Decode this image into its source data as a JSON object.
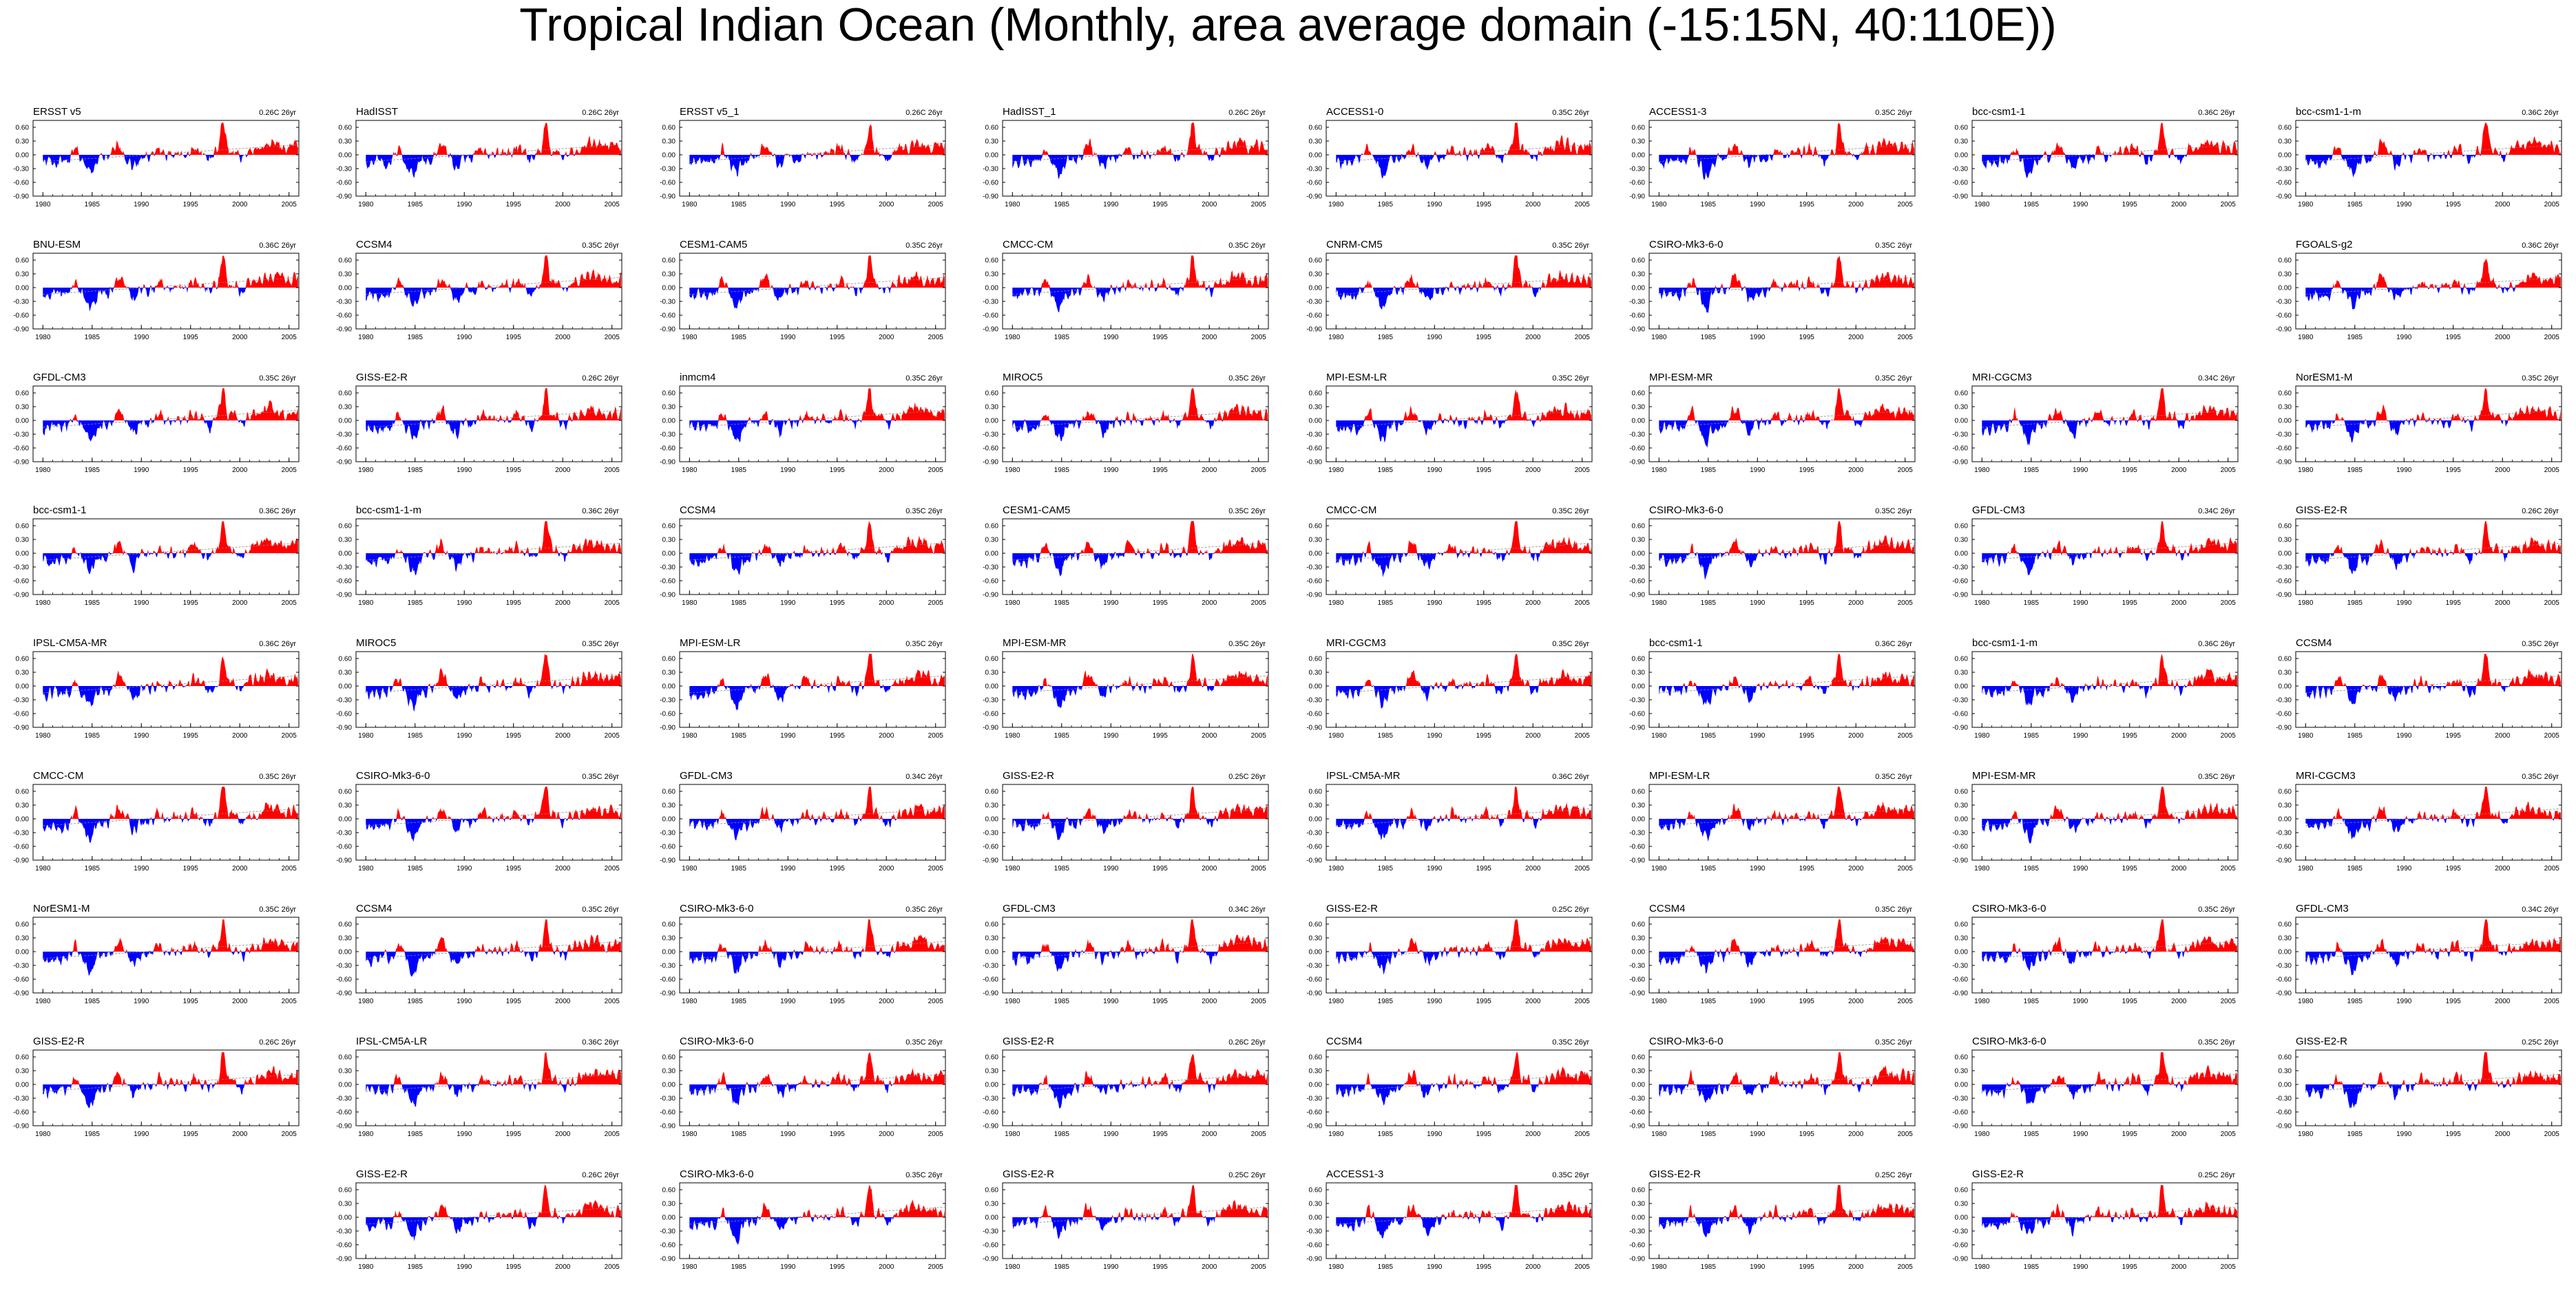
{
  "title": "Tropical Indian Ocean (Monthly, area average domain (-15:15N, 40:110E))",
  "colors": {
    "positive": "#ff0000",
    "negative": "#0000ff",
    "trend": "#888888",
    "axis": "#000000"
  },
  "chart_data": {
    "type": "area",
    "description_of_panels": "panel grid, each panel an anomaly time series with red fill above zero and blue fill below",
    "x_ticks": [
      "1980",
      "1985",
      "1990",
      "1995",
      "2000",
      "2005"
    ],
    "y_ticks": [
      "0.60",
      "0.30",
      "0.00",
      "-0.30",
      "-0.60",
      "-0.90"
    ],
    "xlim": [
      1979,
      2006
    ],
    "ylim": [
      -0.9,
      0.75
    ],
    "panels": [
      {
        "row": 0,
        "col": 0,
        "name": "ERSST v5",
        "trend": "0.26C 26yr",
        "seed": 1
      },
      {
        "row": 0,
        "col": 1,
        "name": "HadISST",
        "trend": "0.26C 26yr",
        "seed": 2
      },
      {
        "row": 0,
        "col": 2,
        "name": "ERSST v5_1",
        "trend": "0.26C 26yr",
        "seed": 3
      },
      {
        "row": 0,
        "col": 3,
        "name": "HadISST_1",
        "trend": "0.26C 26yr",
        "seed": 4
      },
      {
        "row": 0,
        "col": 4,
        "name": "ACCESS1-0",
        "trend": "0.35C 26yr",
        "seed": 5
      },
      {
        "row": 0,
        "col": 5,
        "name": "ACCESS1-3",
        "trend": "0.35C 26yr",
        "seed": 6
      },
      {
        "row": 0,
        "col": 6,
        "name": "bcc-csm1-1",
        "trend": "0.36C 26yr",
        "seed": 7
      },
      {
        "row": 0,
        "col": 7,
        "name": "bcc-csm1-1-m",
        "trend": "0.36C 26yr",
        "seed": 8
      },
      {
        "row": 1,
        "col": 0,
        "name": "BNU-ESM",
        "trend": "0.36C 26yr",
        "seed": 9
      },
      {
        "row": 1,
        "col": 1,
        "name": "CCSM4",
        "trend": "0.35C 26yr",
        "seed": 10
      },
      {
        "row": 1,
        "col": 2,
        "name": "CESM1-CAM5",
        "trend": "0.35C 26yr",
        "seed": 11
      },
      {
        "row": 1,
        "col": 3,
        "name": "CMCC-CM",
        "trend": "0.35C 26yr",
        "seed": 12
      },
      {
        "row": 1,
        "col": 4,
        "name": "CNRM-CM5",
        "trend": "0.35C 26yr",
        "seed": 13
      },
      {
        "row": 1,
        "col": 5,
        "name": "CSIRO-Mk3-6-0",
        "trend": "0.35C 26yr",
        "seed": 14
      },
      {
        "row": 1,
        "col": 7,
        "name": "FGOALS-g2",
        "trend": "0.36C 26yr",
        "seed": 15
      },
      {
        "row": 2,
        "col": 0,
        "name": "GFDL-CM3",
        "trend": "0.35C 26yr",
        "seed": 16
      },
      {
        "row": 2,
        "col": 1,
        "name": "GISS-E2-R",
        "trend": "0.26C 26yr",
        "seed": 17
      },
      {
        "row": 2,
        "col": 2,
        "name": "inmcm4",
        "trend": "0.35C 26yr",
        "seed": 18
      },
      {
        "row": 2,
        "col": 3,
        "name": "MIROC5",
        "trend": "0.35C 26yr",
        "seed": 19
      },
      {
        "row": 2,
        "col": 4,
        "name": "MPI-ESM-LR",
        "trend": "0.35C 26yr",
        "seed": 20
      },
      {
        "row": 2,
        "col": 5,
        "name": "MPI-ESM-MR",
        "trend": "0.35C 26yr",
        "seed": 21
      },
      {
        "row": 2,
        "col": 6,
        "name": "MRI-CGCM3",
        "trend": "0.34C 26yr",
        "seed": 22
      },
      {
        "row": 2,
        "col": 7,
        "name": "NorESM1-M",
        "trend": "0.35C 26yr",
        "seed": 23
      },
      {
        "row": 3,
        "col": 0,
        "name": "bcc-csm1-1",
        "trend": "0.36C 26yr",
        "seed": 24
      },
      {
        "row": 3,
        "col": 1,
        "name": "bcc-csm1-1-m",
        "trend": "0.36C 26yr",
        "seed": 25
      },
      {
        "row": 3,
        "col": 2,
        "name": "CCSM4",
        "trend": "0.35C 26yr",
        "seed": 26
      },
      {
        "row": 3,
        "col": 3,
        "name": "CESM1-CAM5",
        "trend": "0.35C 26yr",
        "seed": 27
      },
      {
        "row": 3,
        "col": 4,
        "name": "CMCC-CM",
        "trend": "0.35C 26yr",
        "seed": 28
      },
      {
        "row": 3,
        "col": 5,
        "name": "CSIRO-Mk3-6-0",
        "trend": "0.35C 26yr",
        "seed": 29
      },
      {
        "row": 3,
        "col": 6,
        "name": "GFDL-CM3",
        "trend": "0.34C 26yr",
        "seed": 30
      },
      {
        "row": 3,
        "col": 7,
        "name": "GISS-E2-R",
        "trend": "0.26C 26yr",
        "seed": 31
      },
      {
        "row": 4,
        "col": 0,
        "name": "IPSL-CM5A-MR",
        "trend": "0.36C 26yr",
        "seed": 32
      },
      {
        "row": 4,
        "col": 1,
        "name": "MIROC5",
        "trend": "0.35C 26yr",
        "seed": 33
      },
      {
        "row": 4,
        "col": 2,
        "name": "MPI-ESM-LR",
        "trend": "0.35C 26yr",
        "seed": 34
      },
      {
        "row": 4,
        "col": 3,
        "name": "MPI-ESM-MR",
        "trend": "0.35C 26yr",
        "seed": 35
      },
      {
        "row": 4,
        "col": 4,
        "name": "MRI-CGCM3",
        "trend": "0.35C 26yr",
        "seed": 36
      },
      {
        "row": 4,
        "col": 5,
        "name": "bcc-csm1-1",
        "trend": "0.36C 26yr",
        "seed": 37
      },
      {
        "row": 4,
        "col": 6,
        "name": "bcc-csm1-1-m",
        "trend": "0.36C 26yr",
        "seed": 38
      },
      {
        "row": 4,
        "col": 7,
        "name": "CCSM4",
        "trend": "0.35C 26yr",
        "seed": 39
      },
      {
        "row": 5,
        "col": 0,
        "name": "CMCC-CM",
        "trend": "0.35C 26yr",
        "seed": 40
      },
      {
        "row": 5,
        "col": 1,
        "name": "CSIRO-Mk3-6-0",
        "trend": "0.35C 26yr",
        "seed": 41
      },
      {
        "row": 5,
        "col": 2,
        "name": "GFDL-CM3",
        "trend": "0.34C 26yr",
        "seed": 42
      },
      {
        "row": 5,
        "col": 3,
        "name": "GISS-E2-R",
        "trend": "0.25C 26yr",
        "seed": 43
      },
      {
        "row": 5,
        "col": 4,
        "name": "IPSL-CM5A-MR",
        "trend": "0.36C 26yr",
        "seed": 44
      },
      {
        "row": 5,
        "col": 5,
        "name": "MPI-ESM-LR",
        "trend": "0.35C 26yr",
        "seed": 45
      },
      {
        "row": 5,
        "col": 6,
        "name": "MPI-ESM-MR",
        "trend": "0.35C 26yr",
        "seed": 46
      },
      {
        "row": 5,
        "col": 7,
        "name": "MRI-CGCM3",
        "trend": "0.35C 26yr",
        "seed": 47
      },
      {
        "row": 6,
        "col": 0,
        "name": "NorESM1-M",
        "trend": "0.35C 26yr",
        "seed": 48
      },
      {
        "row": 6,
        "col": 1,
        "name": "CCSM4",
        "trend": "0.35C 26yr",
        "seed": 49
      },
      {
        "row": 6,
        "col": 2,
        "name": "CSIRO-Mk3-6-0",
        "trend": "0.35C 26yr",
        "seed": 50
      },
      {
        "row": 6,
        "col": 3,
        "name": "GFDL-CM3",
        "trend": "0.34C 26yr",
        "seed": 51
      },
      {
        "row": 6,
        "col": 4,
        "name": "GISS-E2-R",
        "trend": "0.25C 26yr",
        "seed": 52
      },
      {
        "row": 6,
        "col": 5,
        "name": "CCSM4",
        "trend": "0.35C 26yr",
        "seed": 53
      },
      {
        "row": 6,
        "col": 6,
        "name": "CSIRO-Mk3-6-0",
        "trend": "0.35C 26yr",
        "seed": 54
      },
      {
        "row": 6,
        "col": 7,
        "name": "GFDL-CM3",
        "trend": "0.34C 26yr",
        "seed": 55
      },
      {
        "row": 7,
        "col": 0,
        "name": "GISS-E2-R",
        "trend": "0.26C 26yr",
        "seed": 56
      },
      {
        "row": 7,
        "col": 1,
        "name": "IPSL-CM5A-LR",
        "trend": "0.36C 26yr",
        "seed": 57
      },
      {
        "row": 7,
        "col": 2,
        "name": "CSIRO-Mk3-6-0",
        "trend": "0.35C 26yr",
        "seed": 58
      },
      {
        "row": 7,
        "col": 3,
        "name": "GISS-E2-R",
        "trend": "0.26C 26yr",
        "seed": 59
      },
      {
        "row": 7,
        "col": 4,
        "name": "CCSM4",
        "trend": "0.35C 26yr",
        "seed": 60
      },
      {
        "row": 7,
        "col": 5,
        "name": "CSIRO-Mk3-6-0",
        "trend": "0.35C 26yr",
        "seed": 61
      },
      {
        "row": 7,
        "col": 6,
        "name": "CSIRO-Mk3-6-0",
        "trend": "0.35C 26yr",
        "seed": 62
      },
      {
        "row": 7,
        "col": 7,
        "name": "GISS-E2-R",
        "trend": "0.25C 26yr",
        "seed": 63
      },
      {
        "row": 8,
        "col": 1,
        "name": "GISS-E2-R",
        "trend": "0.26C 26yr",
        "seed": 64
      },
      {
        "row": 8,
        "col": 2,
        "name": "CSIRO-Mk3-6-0",
        "trend": "0.35C 26yr",
        "seed": 65
      },
      {
        "row": 8,
        "col": 3,
        "name": "GISS-E2-R",
        "trend": "0.25C 26yr",
        "seed": 66
      },
      {
        "row": 8,
        "col": 4,
        "name": "ACCESS1-3",
        "trend": "0.35C 26yr",
        "seed": 67
      },
      {
        "row": 8,
        "col": 5,
        "name": "GISS-E2-R",
        "trend": "0.25C 26yr",
        "seed": 68
      },
      {
        "row": 8,
        "col": 6,
        "name": "GISS-E2-R",
        "trend": "0.25C 26yr",
        "seed": 69
      }
    ]
  }
}
